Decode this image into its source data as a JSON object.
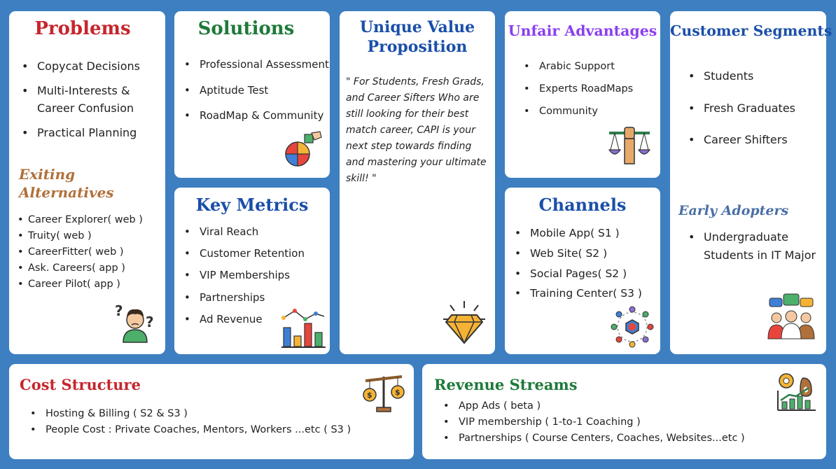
{
  "colors": {
    "background": "#3d7fc1",
    "red": "#c6262e",
    "green": "#1e7a3a",
    "blue": "#1a4fa8",
    "purple": "#8b3ff0",
    "bronze": "#b0703a",
    "steel": "#4a6fa5"
  },
  "problems": {
    "title": "Problems",
    "items": [
      "Copycat Decisions",
      "Multi-Interests & Career Confusion",
      "Practical Planning"
    ],
    "alternatives_title": "Exiting Alternatives",
    "alternatives": [
      {
        "name": "Career Explorer",
        "tag": "( web )"
      },
      {
        "name": "Truity",
        "tag": "( web )"
      },
      {
        "name": "CareerFitter",
        "tag": "( web )"
      },
      {
        "name": "Ask. Careers",
        "tag": "( app )"
      },
      {
        "name": "Career Pilot",
        "tag": "( app )"
      }
    ],
    "icon": "confused-person-icon"
  },
  "solutions": {
    "title": "Solutions",
    "items": [
      "Professional Assessment",
      "Aptitude Test",
      "RoadMap & Community"
    ],
    "icon": "puzzle-icon"
  },
  "key_metrics": {
    "title": "Key Metrics",
    "items": [
      "Viral Reach",
      "Customer Retention",
      "VIP Memberships",
      "Partnerships",
      "Ad Revenue"
    ],
    "icon": "bar-chart-icon"
  },
  "uvp": {
    "title_line1": "Unique Value",
    "title_line2": "Proposition",
    "text": "\" For Students, Fresh Grads, and Career Sifters Who are still looking for their best match career, CAPI is your next step towards finding and mastering your ultimate skill! \"",
    "icon": "diamond-icon"
  },
  "unfair": {
    "title": "Unfair Advantages",
    "items": [
      "Arabic Support",
      "Experts RoadMaps",
      "Community"
    ],
    "icon": "scales-fist-icon"
  },
  "channels": {
    "title": "Channels",
    "items": [
      {
        "name": "Mobile App",
        "tag": "( S1 )"
      },
      {
        "name": "Web Site",
        "tag": "( S2 )"
      },
      {
        "name": "Social Pages",
        "tag": "( S2 )"
      },
      {
        "name": "Training Center",
        "tag": "( S3 )"
      }
    ],
    "icon": "network-icon"
  },
  "segments": {
    "title": "Customer Segments",
    "items": [
      "Students",
      "Fresh Graduates",
      "Career Shifters"
    ],
    "early_title": "Early Adopters",
    "early_items": [
      "Undergraduate Students in IT Major"
    ],
    "icon": "group-chat-icon"
  },
  "cost": {
    "title": "Cost Structure",
    "items": [
      "Hosting & Billing ( S2 & S3 )",
      "People Cost : Private Coaches, Mentors, Workers ...etc  ( S3 )"
    ],
    "icon": "balance-icon"
  },
  "revenue": {
    "title": "Revenue Streams",
    "items": [
      "App Ads ( beta )",
      "VIP membership ( 1-to-1 Coaching )",
      "Partnerships ( Course Centers, Coaches, Websites...etc )"
    ],
    "icon": "growth-icon"
  }
}
